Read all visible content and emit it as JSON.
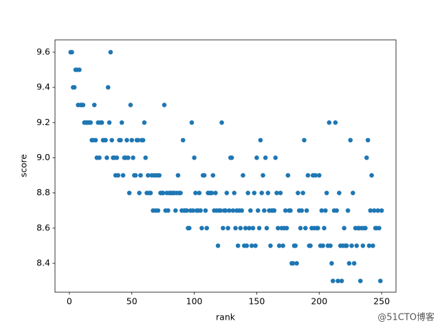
{
  "chart_data": {
    "type": "scatter",
    "x_label": "rank",
    "y_label": "score",
    "color": "#1f77b4",
    "xlim": [
      -11.5,
      261.5
    ],
    "ylim": [
      8.236,
      9.67
    ],
    "xticks": [
      0,
      50,
      100,
      150,
      200,
      250
    ],
    "yticks": [
      8.4,
      8.6,
      8.8,
      {
        "value": 9,
        "label": "9.0"
      },
      9.2,
      9.4,
      9.6
    ],
    "grid": false,
    "watermark": "@51CTO博客",
    "x": [
      1,
      2,
      3,
      4,
      5,
      6,
      7,
      8,
      9,
      10,
      11,
      12,
      13,
      14,
      15,
      16,
      17,
      18,
      19,
      20,
      21,
      22,
      23,
      24,
      25,
      26,
      27,
      28,
      29,
      30,
      31,
      32,
      33,
      34,
      35,
      36,
      37,
      38,
      39,
      40,
      41,
      42,
      43,
      44,
      45,
      46,
      47,
      48,
      49,
      50,
      51,
      52,
      53,
      54,
      55,
      56,
      57,
      58,
      59,
      60,
      61,
      62,
      63,
      64,
      65,
      66,
      67,
      68,
      69,
      70,
      71,
      72,
      73,
      74,
      75,
      76,
      77,
      78,
      79,
      80,
      81,
      82,
      83,
      84,
      85,
      86,
      87,
      88,
      89,
      90,
      91,
      92,
      93,
      94,
      95,
      96,
      97,
      98,
      99,
      100,
      101,
      102,
      103,
      104,
      105,
      106,
      107,
      108,
      109,
      110,
      111,
      112,
      113,
      114,
      115,
      116,
      117,
      118,
      119,
      120,
      121,
      122,
      123,
      124,
      125,
      126,
      127,
      128,
      129,
      130,
      131,
      132,
      133,
      134,
      135,
      136,
      137,
      138,
      139,
      140,
      141,
      142,
      143,
      144,
      145,
      146,
      147,
      148,
      149,
      150,
      151,
      152,
      153,
      154,
      155,
      156,
      157,
      158,
      159,
      160,
      161,
      162,
      163,
      164,
      165,
      166,
      167,
      168,
      169,
      170,
      171,
      172,
      173,
      174,
      175,
      176,
      177,
      178,
      179,
      180,
      181,
      182,
      183,
      184,
      185,
      186,
      187,
      188,
      189,
      190,
      191,
      192,
      193,
      194,
      195,
      196,
      197,
      198,
      199,
      200,
      201,
      202,
      203,
      204,
      205,
      206,
      207,
      208,
      209,
      210,
      211,
      212,
      213,
      214,
      215,
      216,
      217,
      218,
      219,
      220,
      221,
      222,
      223,
      224,
      225,
      226,
      227,
      228,
      229,
      230,
      231,
      232,
      233,
      234,
      235,
      236,
      237,
      238,
      239,
      240,
      241,
      242,
      243,
      244,
      245,
      246,
      247,
      248,
      249,
      250
    ],
    "y": [
      9.6,
      9.6,
      9.4,
      9.4,
      9.5,
      9.5,
      9.3,
      9.5,
      9.3,
      9.3,
      9.3,
      9.2,
      9.2,
      9.2,
      9.2,
      9.2,
      9.2,
      9.1,
      9.1,
      9.3,
      9.1,
      9.0,
      9.2,
      9.0,
      9.2,
      9.2,
      9.1,
      9.1,
      9.1,
      9.0,
      9.4,
      9.2,
      9.6,
      9.1,
      9.0,
      9.0,
      8.9,
      9.0,
      8.9,
      9.1,
      9.1,
      9.2,
      8.9,
      9.0,
      9.0,
      9.1,
      9.0,
      8.8,
      9.3,
      9.1,
      9.0,
      8.9,
      8.9,
      9.1,
      9.1,
      8.8,
      8.9,
      9.1,
      9.1,
      9.2,
      9.0,
      8.8,
      8.9,
      8.8,
      8.8,
      8.9,
      8.7,
      8.9,
      8.7,
      8.9,
      8.7,
      8.9,
      8.8,
      8.8,
      8.8,
      9.3,
      8.7,
      8.8,
      8.7,
      8.8,
      8.8,
      8.8,
      8.8,
      8.8,
      8.7,
      8.8,
      8.9,
      8.8,
      8.8,
      8.7,
      9.1,
      8.7,
      8.7,
      8.7,
      8.6,
      8.6,
      8.7,
      9.2,
      8.7,
      9.0,
      8.8,
      8.7,
      8.7,
      8.8,
      8.7,
      8.6,
      8.9,
      8.9,
      8.7,
      8.6,
      8.8,
      8.8,
      8.8,
      8.8,
      8.9,
      8.7,
      8.8,
      8.7,
      8.5,
      8.7,
      8.7,
      9.2,
      8.6,
      8.7,
      8.7,
      8.8,
      8.6,
      8.7,
      9.0,
      9.0,
      8.7,
      8.8,
      8.6,
      8.7,
      8.5,
      8.7,
      8.6,
      8.7,
      8.9,
      8.5,
      8.6,
      8.5,
      8.8,
      8.6,
      8.7,
      8.5,
      8.6,
      8.8,
      8.5,
      9.0,
      8.7,
      8.6,
      9.1,
      8.8,
      8.9,
      8.7,
      9.0,
      8.6,
      8.8,
      8.7,
      8.5,
      8.7,
      8.7,
      8.7,
      9.0,
      8.8,
      8.6,
      8.5,
      8.8,
      8.6,
      8.5,
      8.6,
      8.7,
      8.6,
      8.9,
      8.7,
      8.7,
      8.4,
      8.4,
      8.5,
      8.5,
      8.4,
      8.8,
      8.7,
      8.6,
      8.7,
      8.8,
      9.1,
      8.6,
      8.7,
      8.9,
      8.5,
      8.5,
      8.6,
      8.9,
      8.6,
      8.9,
      8.6,
      8.6,
      8.9,
      8.5,
      8.7,
      8.5,
      8.6,
      8.7,
      8.8,
      8.5,
      9.2,
      8.5,
      8.4,
      8.3,
      8.7,
      9.2,
      8.7,
      8.3,
      8.8,
      8.5,
      8.3,
      8.5,
      8.6,
      8.5,
      8.5,
      8.7,
      8.4,
      9.1,
      8.5,
      8.8,
      8.4,
      8.6,
      8.5,
      8.6,
      8.6,
      8.3,
      8.6,
      8.5,
      8.6,
      8.6,
      9.0,
      9.1,
      8.5,
      8.7,
      8.9,
      8.5,
      8.7,
      8.6,
      8.6,
      8.7,
      8.6,
      8.3,
      8.7
    ]
  }
}
